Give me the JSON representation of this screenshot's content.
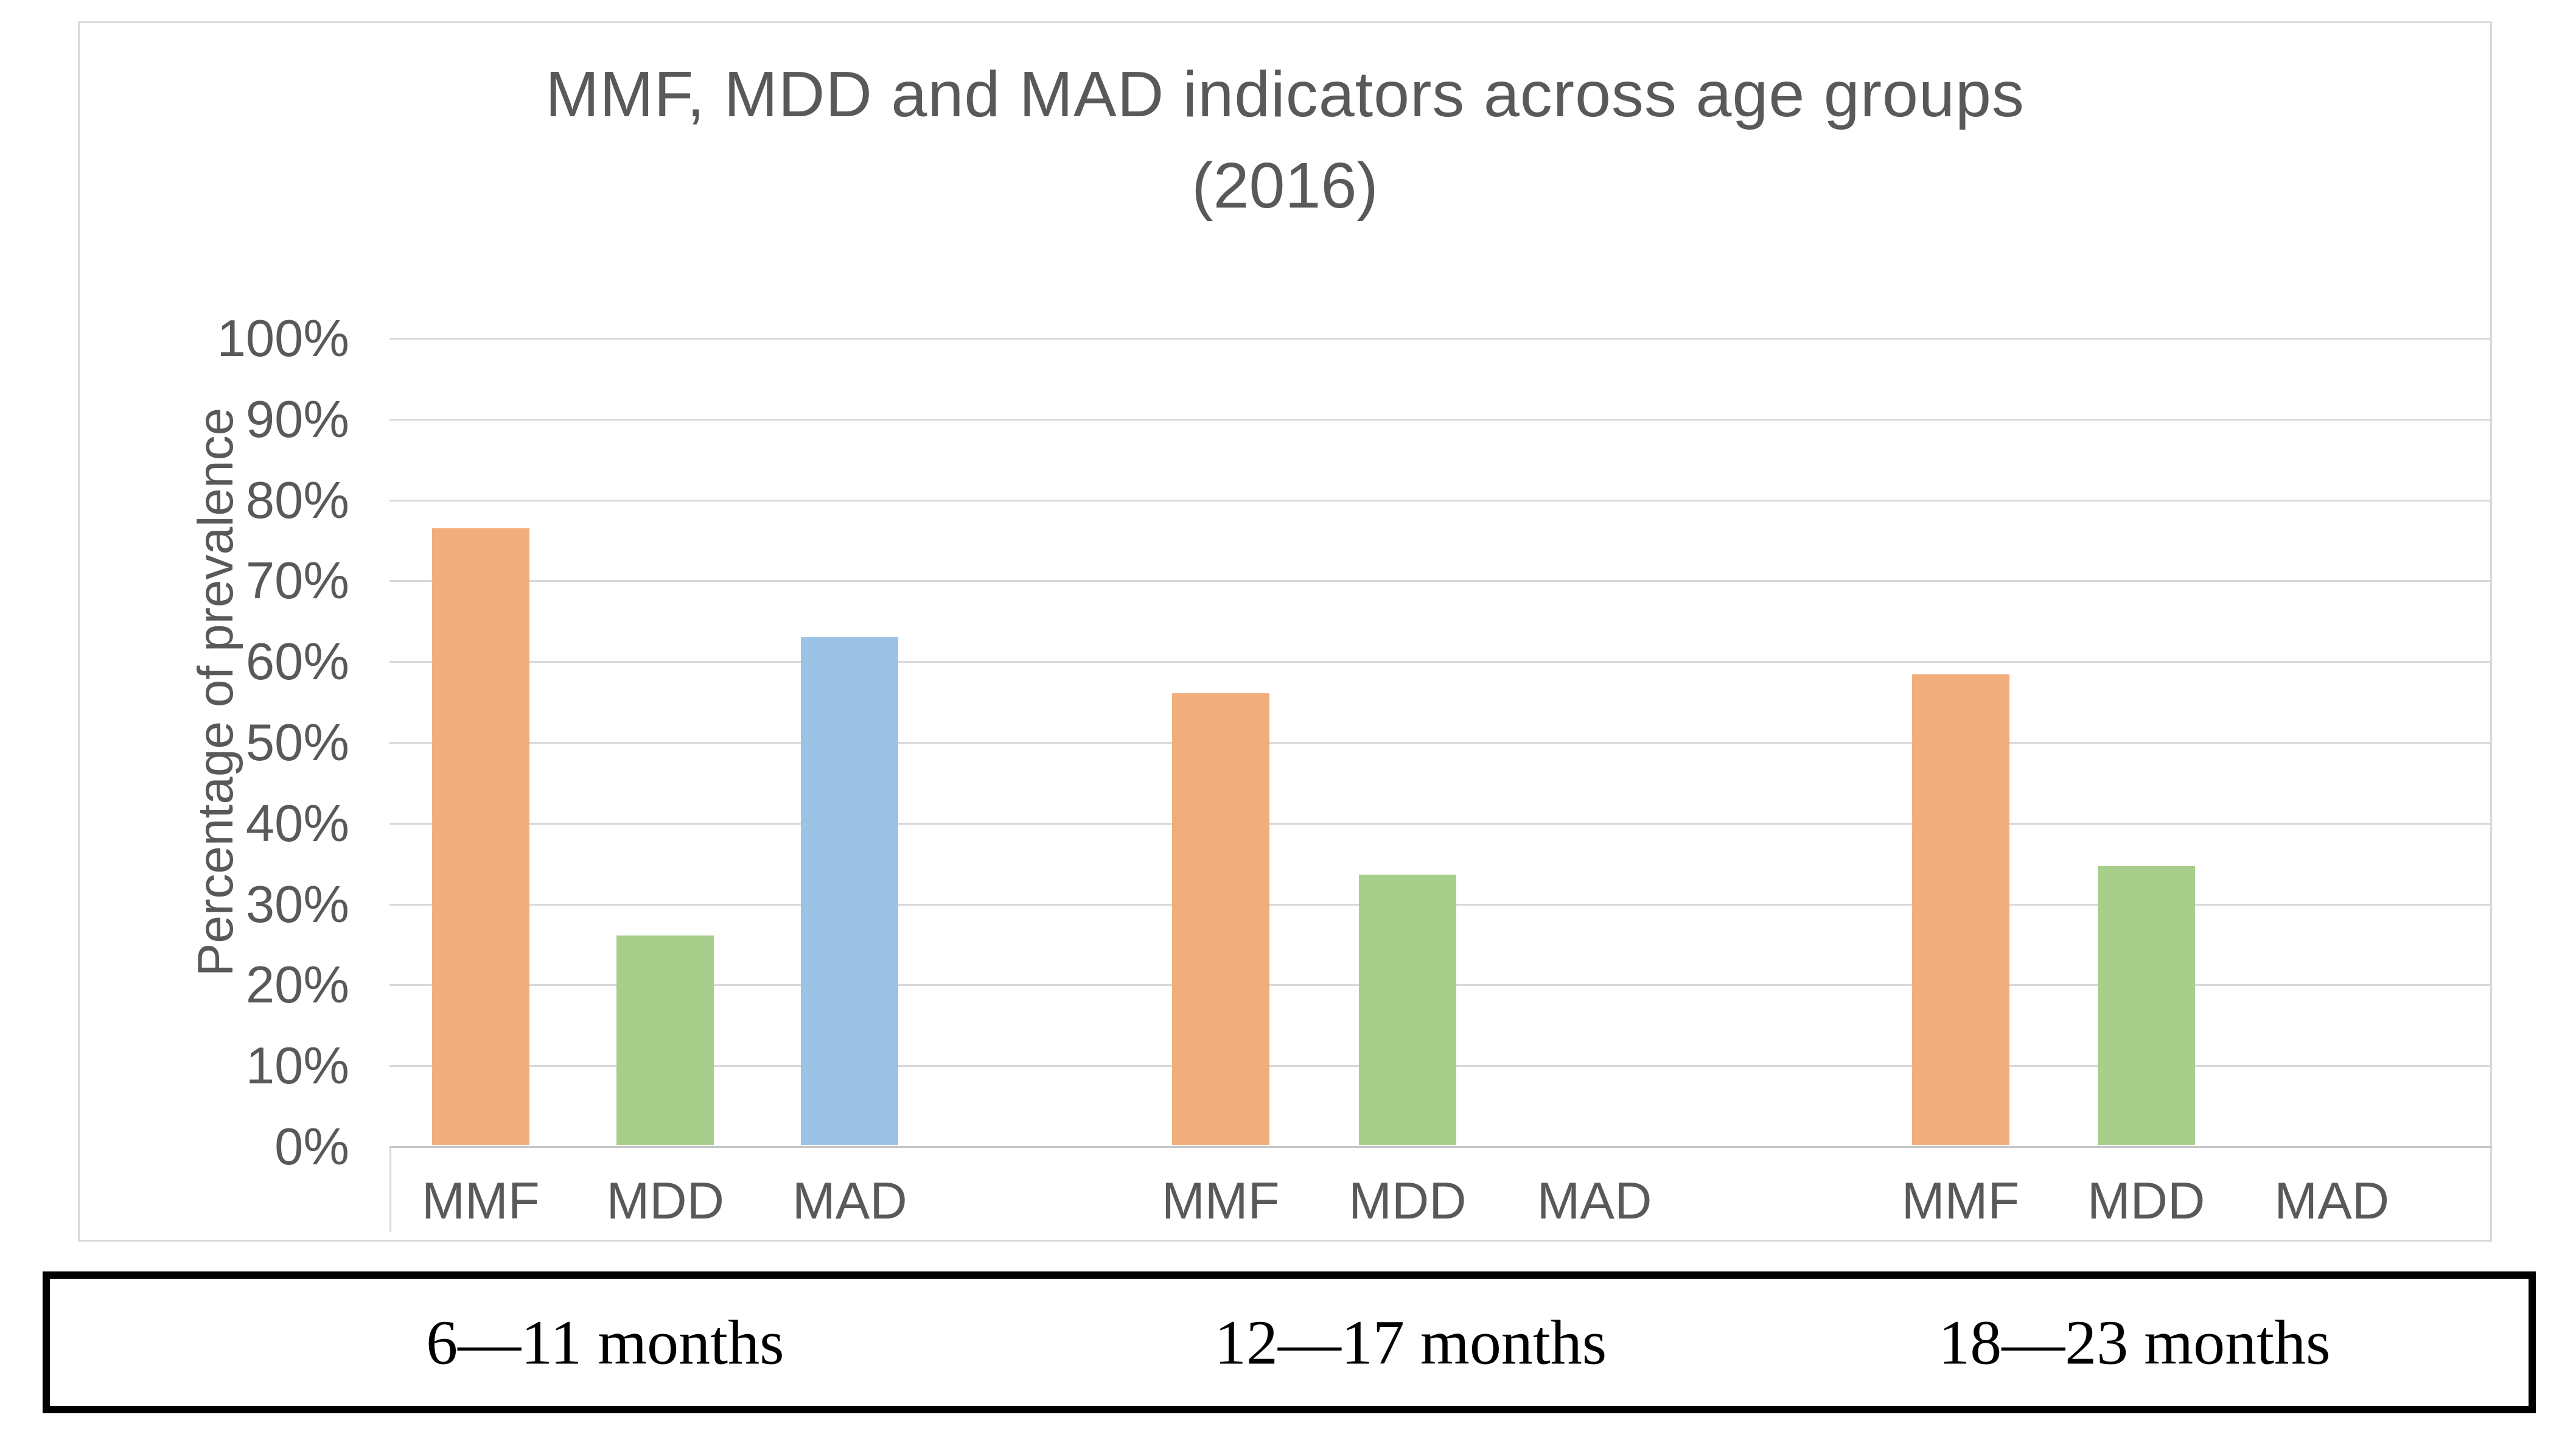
{
  "chart_data": {
    "type": "bar",
    "title": "MMF, MDD and MAD indicators across age groups",
    "subtitle": "(2016)",
    "ylabel": "Percentage of prevalence",
    "xlabel": "",
    "ylim": [
      0,
      100
    ],
    "y_tick_step": 10,
    "y_tick_labels": [
      "100%",
      "90%",
      "80%",
      "70%",
      "60%",
      "50%",
      "40%",
      "30%",
      "20%",
      "10%",
      "0%"
    ],
    "grid": true,
    "legend": "none",
    "indicators": [
      "MMF",
      "MDD",
      "MAD"
    ],
    "categories": [
      "6—11 months",
      "12—17 months",
      "18—23 months"
    ],
    "series": [
      {
        "name": "6—11 months",
        "values": [
          76.3,
          25.9,
          62.8
        ]
      },
      {
        "name": "12—17 months",
        "values": [
          55.9,
          33.4,
          0
        ]
      },
      {
        "name": "18—23 months",
        "values": [
          58.2,
          34.5,
          0
        ]
      }
    ],
    "colors": {
      "MMF": "#F2AD7D",
      "MDD": "#A8CE8C",
      "MAD": "#9CC3E5"
    },
    "gridline_color": "#D9D9D9",
    "text_color": "#595959"
  }
}
